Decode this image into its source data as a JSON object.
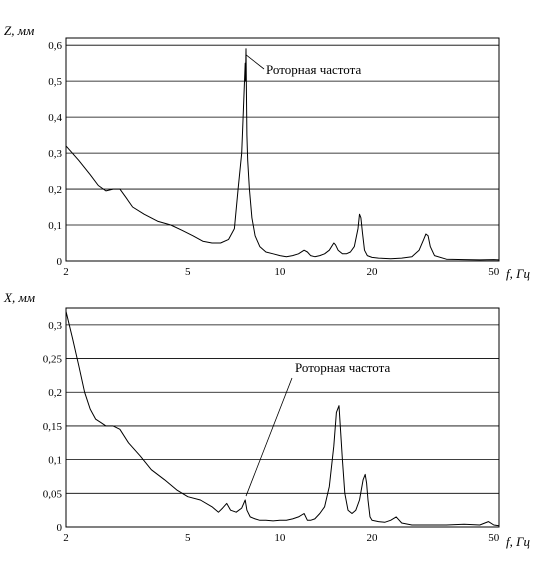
{
  "chart_data": [
    {
      "type": "line",
      "xscale": "log",
      "ylabel": "Z, мм",
      "xlabel": "f, Гц",
      "xlim": [
        2,
        52
      ],
      "ylim": [
        0,
        0.62
      ],
      "xticks": [
        2,
        5,
        10,
        20,
        50
      ],
      "xtick_labels": [
        "2",
        "5",
        "10",
        "20",
        "50"
      ],
      "yticks": [
        0,
        0.1,
        0.2,
        0.3,
        0.4,
        0.5,
        0.6
      ],
      "ytick_labels": [
        "0",
        "0,1",
        "0,2",
        "0,3",
        "0,4",
        "0,5",
        "0,6"
      ],
      "grid": true,
      "annotation": {
        "text": "Роторная частота",
        "x": 7.75,
        "y": 0.59
      },
      "series": [
        {
          "x": [
            2.0,
            2.2,
            2.4,
            2.55,
            2.7,
            2.85,
            3.0,
            3.15,
            3.3,
            3.6,
            4.0,
            4.4,
            4.8,
            5.2,
            5.6,
            6.0,
            6.4,
            6.8,
            7.1,
            7.3,
            7.5,
            7.6,
            7.7,
            7.72,
            7.75,
            7.78,
            7.8,
            7.85,
            7.95,
            8.1,
            8.3,
            8.6,
            9.0,
            9.5,
            10.0,
            10.5,
            11.0,
            11.5,
            12.0,
            12.3,
            12.6,
            13.0,
            13.5,
            14.0,
            14.5,
            15.0,
            15.2,
            15.5,
            16.0,
            16.5,
            17.0,
            17.5,
            18.0,
            18.2,
            18.4,
            18.6,
            18.9,
            19.3,
            20.0,
            21.0,
            23.0,
            25.0,
            27.0,
            28.5,
            29.5,
            30.0,
            30.5,
            31.0,
            32.0,
            35.0,
            40.0,
            45.0,
            50.0,
            52.0
          ],
          "y": [
            0.32,
            0.28,
            0.24,
            0.21,
            0.195,
            0.2,
            0.2,
            0.175,
            0.15,
            0.13,
            0.11,
            0.1,
            0.085,
            0.07,
            0.055,
            0.05,
            0.05,
            0.06,
            0.09,
            0.2,
            0.3,
            0.42,
            0.55,
            0.5,
            0.59,
            0.45,
            0.35,
            0.28,
            0.2,
            0.12,
            0.07,
            0.04,
            0.025,
            0.02,
            0.015,
            0.012,
            0.015,
            0.02,
            0.03,
            0.025,
            0.015,
            0.012,
            0.015,
            0.02,
            0.03,
            0.05,
            0.045,
            0.03,
            0.02,
            0.02,
            0.025,
            0.04,
            0.09,
            0.13,
            0.12,
            0.08,
            0.03,
            0.015,
            0.01,
            0.008,
            0.006,
            0.008,
            0.012,
            0.03,
            0.06,
            0.075,
            0.07,
            0.04,
            0.015,
            0.005,
            0.004,
            0.003,
            0.004,
            0.003
          ]
        }
      ]
    },
    {
      "type": "line",
      "xscale": "log",
      "ylabel": "X, мм",
      "xlabel": "f, Гц",
      "xlim": [
        2,
        52
      ],
      "ylim": [
        0,
        0.325
      ],
      "xticks": [
        2,
        5,
        10,
        20,
        50
      ],
      "xtick_labels": [
        "2",
        "5",
        "10",
        "20",
        "50"
      ],
      "yticks": [
        0,
        0.05,
        0.1,
        0.15,
        0.2,
        0.25,
        0.3
      ],
      "ytick_labels": [
        "0",
        "0,05",
        "0,1",
        "0,15",
        "0,2",
        "0,25",
        "0,3"
      ],
      "grid": true,
      "annotation": {
        "text": "Роторная частота",
        "x": 7.75,
        "y": 0.04
      },
      "series": [
        {
          "x": [
            2.0,
            2.1,
            2.2,
            2.3,
            2.4,
            2.5,
            2.6,
            2.7,
            2.85,
            3.0,
            3.2,
            3.5,
            3.8,
            4.2,
            4.6,
            5.0,
            5.5,
            6.0,
            6.3,
            6.5,
            6.7,
            6.9,
            7.2,
            7.5,
            7.7,
            7.8,
            8.0,
            8.3,
            8.6,
            9.0,
            9.5,
            10.0,
            10.5,
            11.0,
            11.5,
            12.0,
            12.3,
            12.6,
            13.0,
            13.5,
            14.0,
            14.5,
            15.0,
            15.3,
            15.6,
            15.8,
            16.0,
            16.3,
            16.7,
            17.2,
            17.7,
            18.2,
            18.7,
            19.0,
            19.2,
            19.4,
            19.7,
            20.0,
            21.0,
            22.0,
            23.0,
            24.0,
            25.0,
            27.0,
            30.0,
            35.0,
            40.0,
            45.0,
            48.0,
            50.0,
            52.0
          ],
          "y": [
            0.32,
            0.28,
            0.24,
            0.2,
            0.175,
            0.16,
            0.155,
            0.15,
            0.15,
            0.145,
            0.125,
            0.105,
            0.085,
            0.07,
            0.055,
            0.045,
            0.04,
            0.03,
            0.022,
            0.028,
            0.035,
            0.025,
            0.022,
            0.028,
            0.04,
            0.025,
            0.015,
            0.012,
            0.01,
            0.01,
            0.009,
            0.01,
            0.01,
            0.012,
            0.015,
            0.02,
            0.01,
            0.01,
            0.012,
            0.02,
            0.03,
            0.06,
            0.12,
            0.17,
            0.18,
            0.14,
            0.1,
            0.05,
            0.025,
            0.02,
            0.025,
            0.04,
            0.07,
            0.078,
            0.065,
            0.04,
            0.015,
            0.01,
            0.008,
            0.007,
            0.01,
            0.015,
            0.006,
            0.003,
            0.003,
            0.003,
            0.004,
            0.003,
            0.008,
            0.003,
            0.002
          ]
        }
      ]
    }
  ]
}
